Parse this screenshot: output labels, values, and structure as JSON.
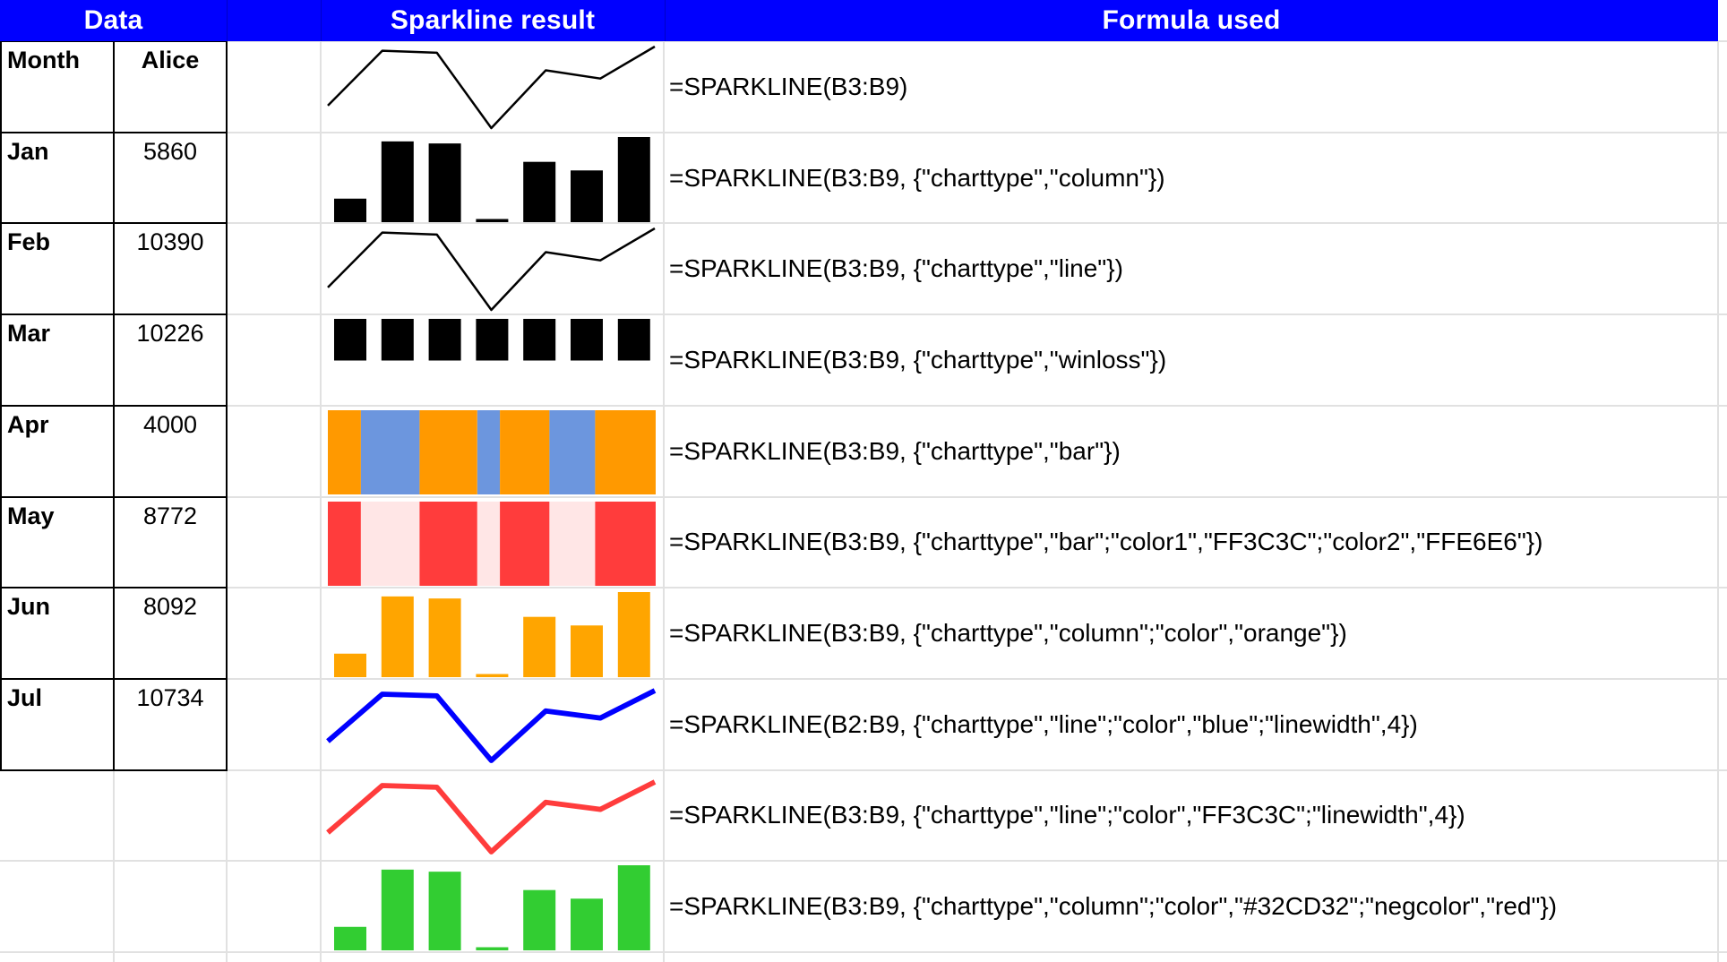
{
  "header": {
    "data": "Data",
    "sparkline": "Sparkline result",
    "formula": "Formula used"
  },
  "table": {
    "cells": [
      [
        "Month",
        "Alice"
      ],
      [
        "Jan",
        "5860"
      ],
      [
        "Feb",
        "10390"
      ],
      [
        "Mar",
        "10226"
      ],
      [
        "Apr",
        "4000"
      ],
      [
        "May",
        "8772"
      ],
      [
        "Jun",
        "8092"
      ],
      [
        "Jul",
        "10734"
      ],
      [
        "",
        ""
      ],
      [
        "",
        ""
      ]
    ]
  },
  "rows": [
    {
      "formula": "=SPARKLINE(B3:B9)",
      "chart": {
        "type": "line",
        "color": "#000000"
      }
    },
    {
      "formula": "=SPARKLINE(B3:B9, {\"charttype\",\"column\"})",
      "chart": {
        "type": "column",
        "color": "#000000"
      }
    },
    {
      "formula": "=SPARKLINE(B3:B9, {\"charttype\",\"line\"})",
      "chart": {
        "type": "line",
        "color": "#000000"
      }
    },
    {
      "formula": "=SPARKLINE(B3:B9, {\"charttype\",\"winloss\"})",
      "chart": {
        "type": "winloss",
        "color": "#000000"
      }
    },
    {
      "formula": "=SPARKLINE(B3:B9, {\"charttype\",\"bar\"})",
      "chart": {
        "type": "bar",
        "color1": "#FF9900",
        "color2": "#6C96DE"
      }
    },
    {
      "formula": "=SPARKLINE(B3:B9, {\"charttype\",\"bar\";\"color1\",\"FF3C3C\";\"color2\",\"FFE6E6\"})",
      "chart": {
        "type": "bar",
        "color1": "#FF3C3C",
        "color2": "#FFE6E6"
      }
    },
    {
      "formula": "=SPARKLINE(B3:B9, {\"charttype\",\"column\";\"color\",\"orange\"})",
      "chart": {
        "type": "column",
        "color": "#FFA500"
      }
    },
    {
      "formula": "=SPARKLINE(B2:B9, {\"charttype\",\"line\";\"color\",\"blue\";\"linewidth\",4})",
      "chart": {
        "type": "line",
        "color": "#0000FF",
        "linewidth": 4
      }
    },
    {
      "formula": "=SPARKLINE(B3:B9, {\"charttype\",\"line\";\"color\",\"FF3C3C\";\"linewidth\",4})",
      "chart": {
        "type": "line",
        "color": "#FF3C3C",
        "linewidth": 4
      }
    },
    {
      "formula": "=SPARKLINE(B3:B9, {\"charttype\",\"column\";\"color\",\"#32CD32\";\"negcolor\",\"red\"})",
      "chart": {
        "type": "column",
        "color": "#32CD32"
      }
    }
  ],
  "chart_data": {
    "type": "line",
    "title": "Sparkline result",
    "categories": [
      "Jan",
      "Feb",
      "Mar",
      "Apr",
      "May",
      "Jun",
      "Jul"
    ],
    "values": [
      5860,
      10390,
      10226,
      4000,
      8772,
      8092,
      10734
    ]
  },
  "colors": {
    "header_bg": "#0000FF",
    "header_text": "#FFFFFF",
    "gridline": "#E1E1E1",
    "table_border": "#000000"
  }
}
